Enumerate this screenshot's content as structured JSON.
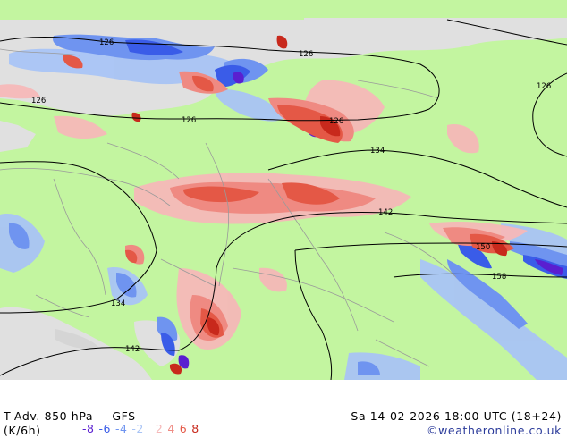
{
  "map": {
    "isoline_labels": [
      "126",
      "126",
      "126",
      "126",
      "126",
      "126",
      "134",
      "134",
      "142",
      "142",
      "150",
      "158"
    ]
  },
  "footer": {
    "title": "T-Adv. 850 hPa",
    "model": "GFS",
    "units": "(K/6h)",
    "datetime": "Sa 14-02-2026 18:00 UTC (18+24)",
    "credit": "©weatheronline.co.uk"
  },
  "legend": {
    "items": [
      {
        "label": "-8",
        "color": "#5a1fd0"
      },
      {
        "label": "-6",
        "color": "#3a5ce8"
      },
      {
        "label": "-4",
        "color": "#6f94f0"
      },
      {
        "label": "-2",
        "color": "#a9c4f5"
      },
      {
        "label": "2",
        "color": "#f5b8b8"
      },
      {
        "label": "4",
        "color": "#ef8a82"
      },
      {
        "label": "6",
        "color": "#e45846"
      },
      {
        "label": "8",
        "color": "#c8291c"
      }
    ]
  },
  "colors": {
    "land_bg": "#c3f5a0",
    "sea": "#e0e0e0",
    "cold1": "#a9c4f5",
    "cold2": "#6f94f0",
    "cold3": "#3a5ce8",
    "cold4": "#5a1fd0",
    "warm1": "#f5b8b8",
    "warm2": "#ef8a82",
    "warm3": "#e45846",
    "warm4": "#c8291c"
  }
}
